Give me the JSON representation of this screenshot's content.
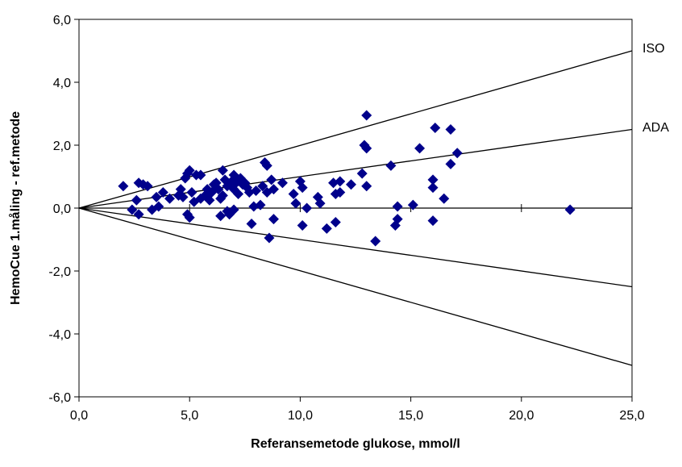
{
  "chart_data": {
    "type": "scatter",
    "title": "",
    "xlabel": "Referansemetode glukose, mmol/l",
    "ylabel": "HemoCue 1.måling - ref.metode",
    "xlim": [
      0,
      25
    ],
    "ylim": [
      -6,
      6
    ],
    "x_ticks": [
      0,
      5,
      10,
      15,
      20,
      25
    ],
    "x_tick_labels": [
      "0,0",
      "5,0",
      "10,0",
      "15,0",
      "20,0",
      "25,0"
    ],
    "y_ticks": [
      6,
      4,
      2,
      0,
      -2,
      -4,
      -6
    ],
    "y_tick_labels": [
      "6,0",
      "4,0",
      "2,0",
      "0,0",
      "-2,0",
      "-4,0",
      "-6,0"
    ],
    "grid": false,
    "marker_color": "#00008B",
    "marker": "diamond",
    "limit_lines": [
      {
        "name": "ISO",
        "points": [
          [
            0,
            0
          ],
          [
            4.2,
            0.83
          ],
          [
            25,
            5
          ]
        ]
      },
      {
        "name": "ADA",
        "points": [
          [
            0,
            0
          ],
          [
            25,
            2.5
          ]
        ]
      },
      {
        "name": "",
        "points": [
          [
            0,
            0
          ],
          [
            25,
            -2.5
          ]
        ]
      },
      {
        "name": "",
        "points": [
          [
            0,
            0
          ],
          [
            4.2,
            -0.83
          ],
          [
            25,
            -5
          ]
        ]
      }
    ],
    "line_labels": {
      "iso": "ISO",
      "ada": "ADA"
    },
    "points": [
      [
        2.0,
        0.7
      ],
      [
        2.4,
        -0.05
      ],
      [
        2.6,
        0.25
      ],
      [
        2.7,
        0.8
      ],
      [
        2.7,
        -0.2
      ],
      [
        2.9,
        0.75
      ],
      [
        3.1,
        0.7
      ],
      [
        3.3,
        -0.05
      ],
      [
        3.5,
        0.35
      ],
      [
        3.6,
        0.05
      ],
      [
        3.8,
        0.5
      ],
      [
        4.1,
        0.3
      ],
      [
        4.5,
        0.4
      ],
      [
        4.6,
        0.6
      ],
      [
        4.7,
        0.35
      ],
      [
        4.8,
        0.95
      ],
      [
        4.9,
        1.1
      ],
      [
        5.0,
        1.2
      ],
      [
        4.9,
        -0.2
      ],
      [
        5.0,
        -0.3
      ],
      [
        5.1,
        0.5
      ],
      [
        5.2,
        0.2
      ],
      [
        5.3,
        1.05
      ],
      [
        5.5,
        0.3
      ],
      [
        5.5,
        1.05
      ],
      [
        5.7,
        0.4
      ],
      [
        5.8,
        0.6
      ],
      [
        5.9,
        0.25
      ],
      [
        6.0,
        0.5
      ],
      [
        6.1,
        0.75
      ],
      [
        6.2,
        0.8
      ],
      [
        6.3,
        0.6
      ],
      [
        6.4,
        0.3
      ],
      [
        6.4,
        -0.25
      ],
      [
        6.5,
        1.2
      ],
      [
        6.5,
        0.4
      ],
      [
        6.6,
        0.9
      ],
      [
        6.7,
        -0.1
      ],
      [
        6.7,
        0.7
      ],
      [
        6.8,
        -0.2
      ],
      [
        6.9,
        0.85
      ],
      [
        7.0,
        1.05
      ],
      [
        7.0,
        0.6
      ],
      [
        7.0,
        -0.05
      ],
      [
        7.1,
        0.8
      ],
      [
        7.2,
        0.45
      ],
      [
        7.3,
        0.95
      ],
      [
        7.4,
        0.75
      ],
      [
        7.5,
        0.8
      ],
      [
        7.6,
        0.65
      ],
      [
        7.7,
        0.5
      ],
      [
        7.8,
        -0.5
      ],
      [
        7.9,
        0.05
      ],
      [
        8.0,
        0.55
      ],
      [
        8.2,
        0.1
      ],
      [
        8.3,
        0.7
      ],
      [
        8.4,
        1.45
      ],
      [
        8.5,
        1.35
      ],
      [
        8.5,
        0.5
      ],
      [
        8.6,
        -0.95
      ],
      [
        8.7,
        0.9
      ],
      [
        8.8,
        -0.35
      ],
      [
        8.8,
        0.6
      ],
      [
        9.2,
        0.8
      ],
      [
        9.7,
        0.45
      ],
      [
        9.8,
        0.15
      ],
      [
        10.0,
        0.85
      ],
      [
        10.1,
        0.65
      ],
      [
        10.1,
        -0.55
      ],
      [
        10.3,
        0.0
      ],
      [
        10.8,
        0.35
      ],
      [
        10.9,
        0.15
      ],
      [
        11.2,
        -0.65
      ],
      [
        11.5,
        0.8
      ],
      [
        11.6,
        0.45
      ],
      [
        11.6,
        -0.45
      ],
      [
        11.8,
        0.5
      ],
      [
        11.8,
        0.85
      ],
      [
        12.3,
        0.75
      ],
      [
        12.8,
        1.1
      ],
      [
        12.9,
        2.0
      ],
      [
        13.0,
        1.9
      ],
      [
        13.0,
        0.7
      ],
      [
        13.0,
        2.95
      ],
      [
        13.4,
        -1.05
      ],
      [
        14.1,
        1.35
      ],
      [
        14.3,
        -0.55
      ],
      [
        14.4,
        -0.35
      ],
      [
        14.4,
        0.05
      ],
      [
        15.1,
        0.1
      ],
      [
        15.4,
        1.9
      ],
      [
        16.0,
        0.9
      ],
      [
        16.0,
        0.65
      ],
      [
        16.0,
        -0.4
      ],
      [
        16.1,
        2.55
      ],
      [
        16.5,
        0.3
      ],
      [
        16.8,
        2.5
      ],
      [
        16.8,
        1.4
      ],
      [
        17.1,
        1.75
      ],
      [
        22.2,
        -0.05
      ]
    ]
  }
}
